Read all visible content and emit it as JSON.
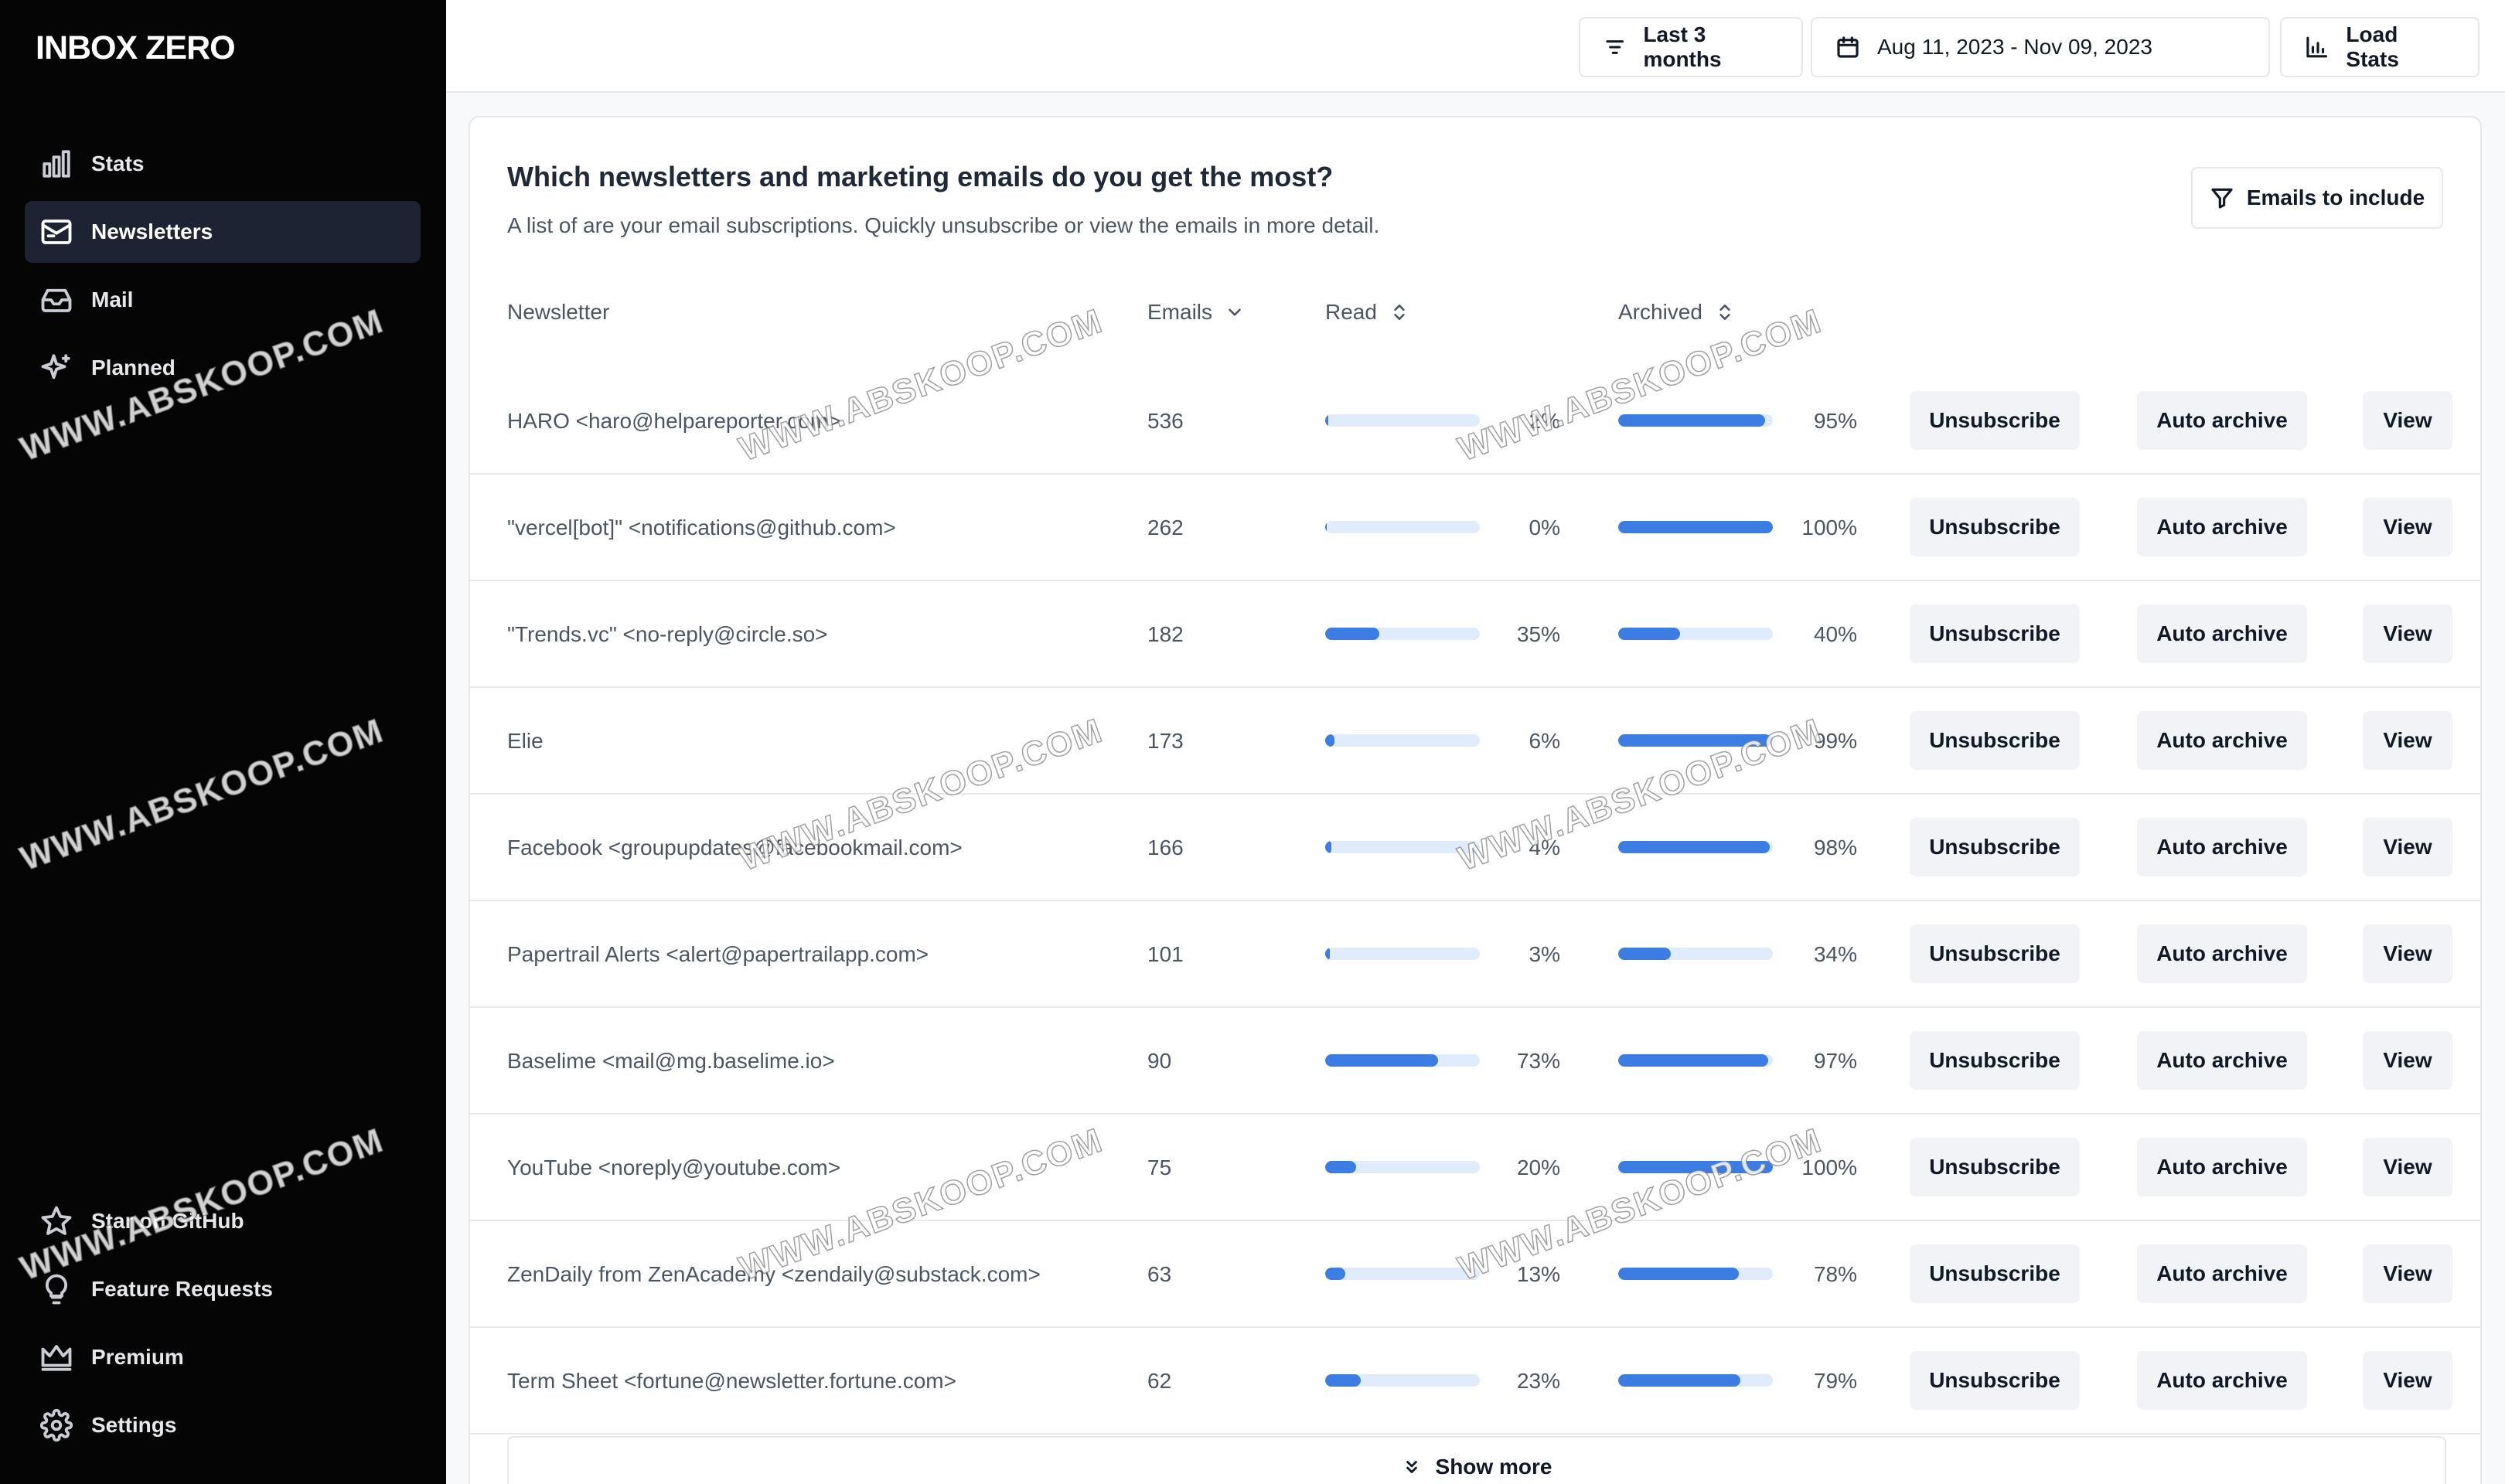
{
  "app": {
    "title": "INBOX ZERO"
  },
  "sidebar": {
    "top_items": [
      {
        "label": "Stats",
        "icon": "bar-chart-icon",
        "active": false
      },
      {
        "label": "Newsletters",
        "icon": "newsletter-icon",
        "active": true
      },
      {
        "label": "Mail",
        "icon": "inbox-icon",
        "active": false
      },
      {
        "label": "Planned",
        "icon": "sparkles-icon",
        "active": false
      }
    ],
    "bottom_items": [
      {
        "label": "Star on GitHub",
        "icon": "star-icon"
      },
      {
        "label": "Feature Requests",
        "icon": "lightbulb-icon"
      },
      {
        "label": "Premium",
        "icon": "crown-icon"
      },
      {
        "label": "Settings",
        "icon": "gear-icon"
      }
    ]
  },
  "topbar": {
    "range_label": "Last 3 months",
    "date_range": "Aug 11, 2023 - Nov 09, 2023",
    "load_label": "Load Stats"
  },
  "card": {
    "title": "Which newsletters and marketing emails do you get the most?",
    "subtitle": "A list of are your email subscriptions. Quickly unsubscribe or view the emails in more detail.",
    "filter_label": "Emails to include",
    "columns": {
      "newsletter": "Newsletter",
      "emails": "Emails",
      "read": "Read",
      "archived": "Archived"
    },
    "actions": {
      "unsubscribe": "Unsubscribe",
      "auto_archive": "Auto archive",
      "view": "View"
    },
    "rows": [
      {
        "name": "HARO <haro@helpareporter.com>",
        "emails": "536",
        "read": "2%",
        "archived": "95%",
        "read_val": 2,
        "archived_val": 95
      },
      {
        "name": "\"vercel[bot]\" <notifications@github.com>",
        "emails": "262",
        "read": "0%",
        "archived": "100%",
        "read_val": 0,
        "archived_val": 100
      },
      {
        "name": "\"Trends.vc\" <no-reply@circle.so>",
        "emails": "182",
        "read": "35%",
        "archived": "40%",
        "read_val": 35,
        "archived_val": 40
      },
      {
        "name": "Elie",
        "emails": "173",
        "read": "6%",
        "archived": "99%",
        "read_val": 6,
        "archived_val": 99
      },
      {
        "name": "Facebook <groupupdates@facebookmail.com>",
        "emails": "166",
        "read": "4%",
        "archived": "98%",
        "read_val": 4,
        "archived_val": 98
      },
      {
        "name": "Papertrail Alerts <alert@papertrailapp.com>",
        "emails": "101",
        "read": "3%",
        "archived": "34%",
        "read_val": 3,
        "archived_val": 34
      },
      {
        "name": "Baselime <mail@mg.baselime.io>",
        "emails": "90",
        "read": "73%",
        "archived": "97%",
        "read_val": 73,
        "archived_val": 97
      },
      {
        "name": "YouTube <noreply@youtube.com>",
        "emails": "75",
        "read": "20%",
        "archived": "100%",
        "read_val": 20,
        "archived_val": 100
      },
      {
        "name": "ZenDaily from ZenAcademy <zendaily@substack.com>",
        "emails": "63",
        "read": "13%",
        "archived": "78%",
        "read_val": 13,
        "archived_val": 78
      },
      {
        "name": "Term Sheet <fortune@newsletter.fortune.com>",
        "emails": "62",
        "read": "23%",
        "archived": "79%",
        "read_val": 23,
        "archived_val": 79
      }
    ],
    "show_more": "Show more"
  },
  "watermark": "WWW.ABSKOOP.COM",
  "colors": {
    "accent": "#3b7de3",
    "bar_track": "#e0ebfb",
    "sidebar_bg": "#050505"
  }
}
